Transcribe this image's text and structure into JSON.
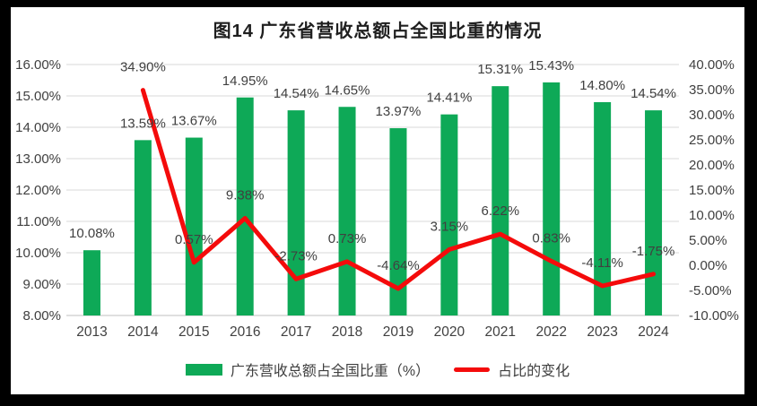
{
  "window": {
    "background": "#000000"
  },
  "chart": {
    "title": "图14  广东省营收总额占全国比重的情况",
    "background": "#FFFFFF",
    "legend": {
      "bar": {
        "label": "广东营收总额占全国比重（%）",
        "color": "#0EA957"
      },
      "line": {
        "label": "占比的变化",
        "color": "#F40B0B"
      }
    }
  },
  "chart_data": {
    "type": "combo-bar-line",
    "title": "图14  广东省营收总额占全国比重的情况",
    "categories": [
      "2013",
      "2014",
      "2015",
      "2016",
      "2017",
      "2018",
      "2019",
      "2020",
      "2021",
      "2022",
      "2023",
      "2024"
    ],
    "series": [
      {
        "name": "广东营收总额占全国比重（%）",
        "type": "bar",
        "axis": "left",
        "color": "#0EA957",
        "values": [
          10.08,
          13.59,
          13.67,
          14.95,
          14.54,
          14.65,
          13.97,
          14.41,
          15.31,
          15.43,
          14.8,
          14.54
        ],
        "data_labels": [
          "10.08%",
          "13.59%",
          "13.67%",
          "14.95%",
          "14.54%",
          "14.65%",
          "13.97%",
          "14.41%",
          "15.31%",
          "15.43%",
          "14.80%",
          "14.54%"
        ]
      },
      {
        "name": "占比的变化",
        "type": "line",
        "axis": "right",
        "color": "#F40B0B",
        "values": [
          null,
          34.9,
          0.57,
          9.38,
          -2.73,
          0.73,
          -4.64,
          3.15,
          6.22,
          0.83,
          -4.11,
          -1.75
        ],
        "data_labels": [
          "",
          "34.90%",
          "0.57%",
          "9.38%",
          "-2.73%",
          "0.73%",
          "-4.64%",
          "3.15%",
          "6.22%",
          "0.83%",
          "-4.11%",
          "-1.75%"
        ]
      }
    ],
    "left_axis": {
      "min": 8,
      "max": 16,
      "step": 1,
      "tick_labels": [
        "16.00%",
        "15.00%",
        "14.00%",
        "13.00%",
        "12.00%",
        "11.00%",
        "10.00%",
        "9.00%",
        "8.00%"
      ]
    },
    "right_axis": {
      "min": -10,
      "max": 40,
      "step": 5,
      "tick_labels": [
        "40.00%",
        "35.00%",
        "30.00%",
        "25.00%",
        "20.00%",
        "15.00%",
        "10.00%",
        "5.00%",
        "0.00%",
        "-5.00%",
        "-10.00%"
      ]
    },
    "grid": true,
    "legend_position": "bottom",
    "text_color": "#404040",
    "gridline_color": "#D9D9D9",
    "axisline_color": "#BFBFBF"
  }
}
